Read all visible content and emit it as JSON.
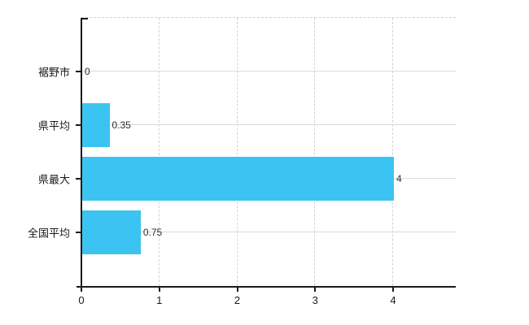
{
  "chart_data": {
    "type": "bar",
    "orientation": "horizontal",
    "categories": [
      "裾野市",
      "県平均",
      "県最大",
      "全国平均"
    ],
    "values": [
      0,
      0.35,
      4,
      0.75
    ],
    "value_labels": [
      "0",
      "0.35",
      "4",
      "0.75"
    ],
    "title": "",
    "xlabel": "",
    "ylabel": "",
    "xlim": [
      0,
      4.8
    ],
    "x_ticks": [
      0,
      1,
      2,
      3,
      4
    ],
    "x_tick_labels": [
      "0",
      "1",
      "2",
      "3",
      "4"
    ],
    "grid": {
      "vertical": "dashed",
      "horizontal": "solid",
      "top_border": "dashed"
    },
    "legend": "none",
    "colors": {
      "bar_fill": "#3bc4f1",
      "axis": "#1a1a1a",
      "vgrid": "#d2d2d2",
      "hgrid": "#d7ddd7",
      "value_label_text": "#2b2b2b",
      "tick_label_text": "#1a1a1a",
      "background": "#ffffff"
    }
  }
}
